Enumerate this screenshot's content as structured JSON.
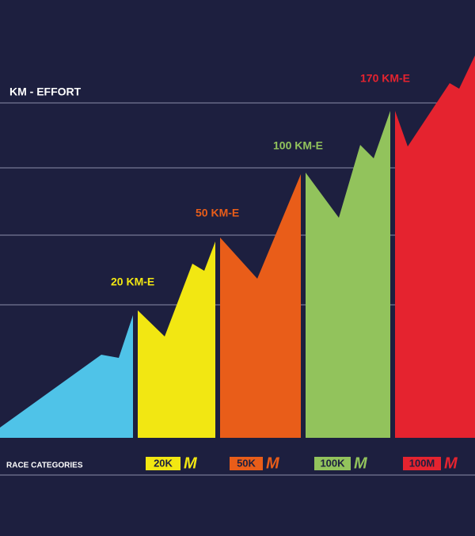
{
  "header": {
    "title": "KM - EFFORT"
  },
  "levels": [
    {
      "label": "20 KM-E"
    },
    {
      "label": "50 KM-E"
    },
    {
      "label": "100 KM-E"
    },
    {
      "label": "170 KM-E"
    }
  ],
  "footer": {
    "title": "RACE CATEGORIES",
    "categories": [
      {
        "distance": "20K",
        "unit": "M"
      },
      {
        "distance": "50K",
        "unit": "M"
      },
      {
        "distance": "100K",
        "unit": "M"
      },
      {
        "distance": "100M",
        "unit": "M"
      }
    ]
  }
}
